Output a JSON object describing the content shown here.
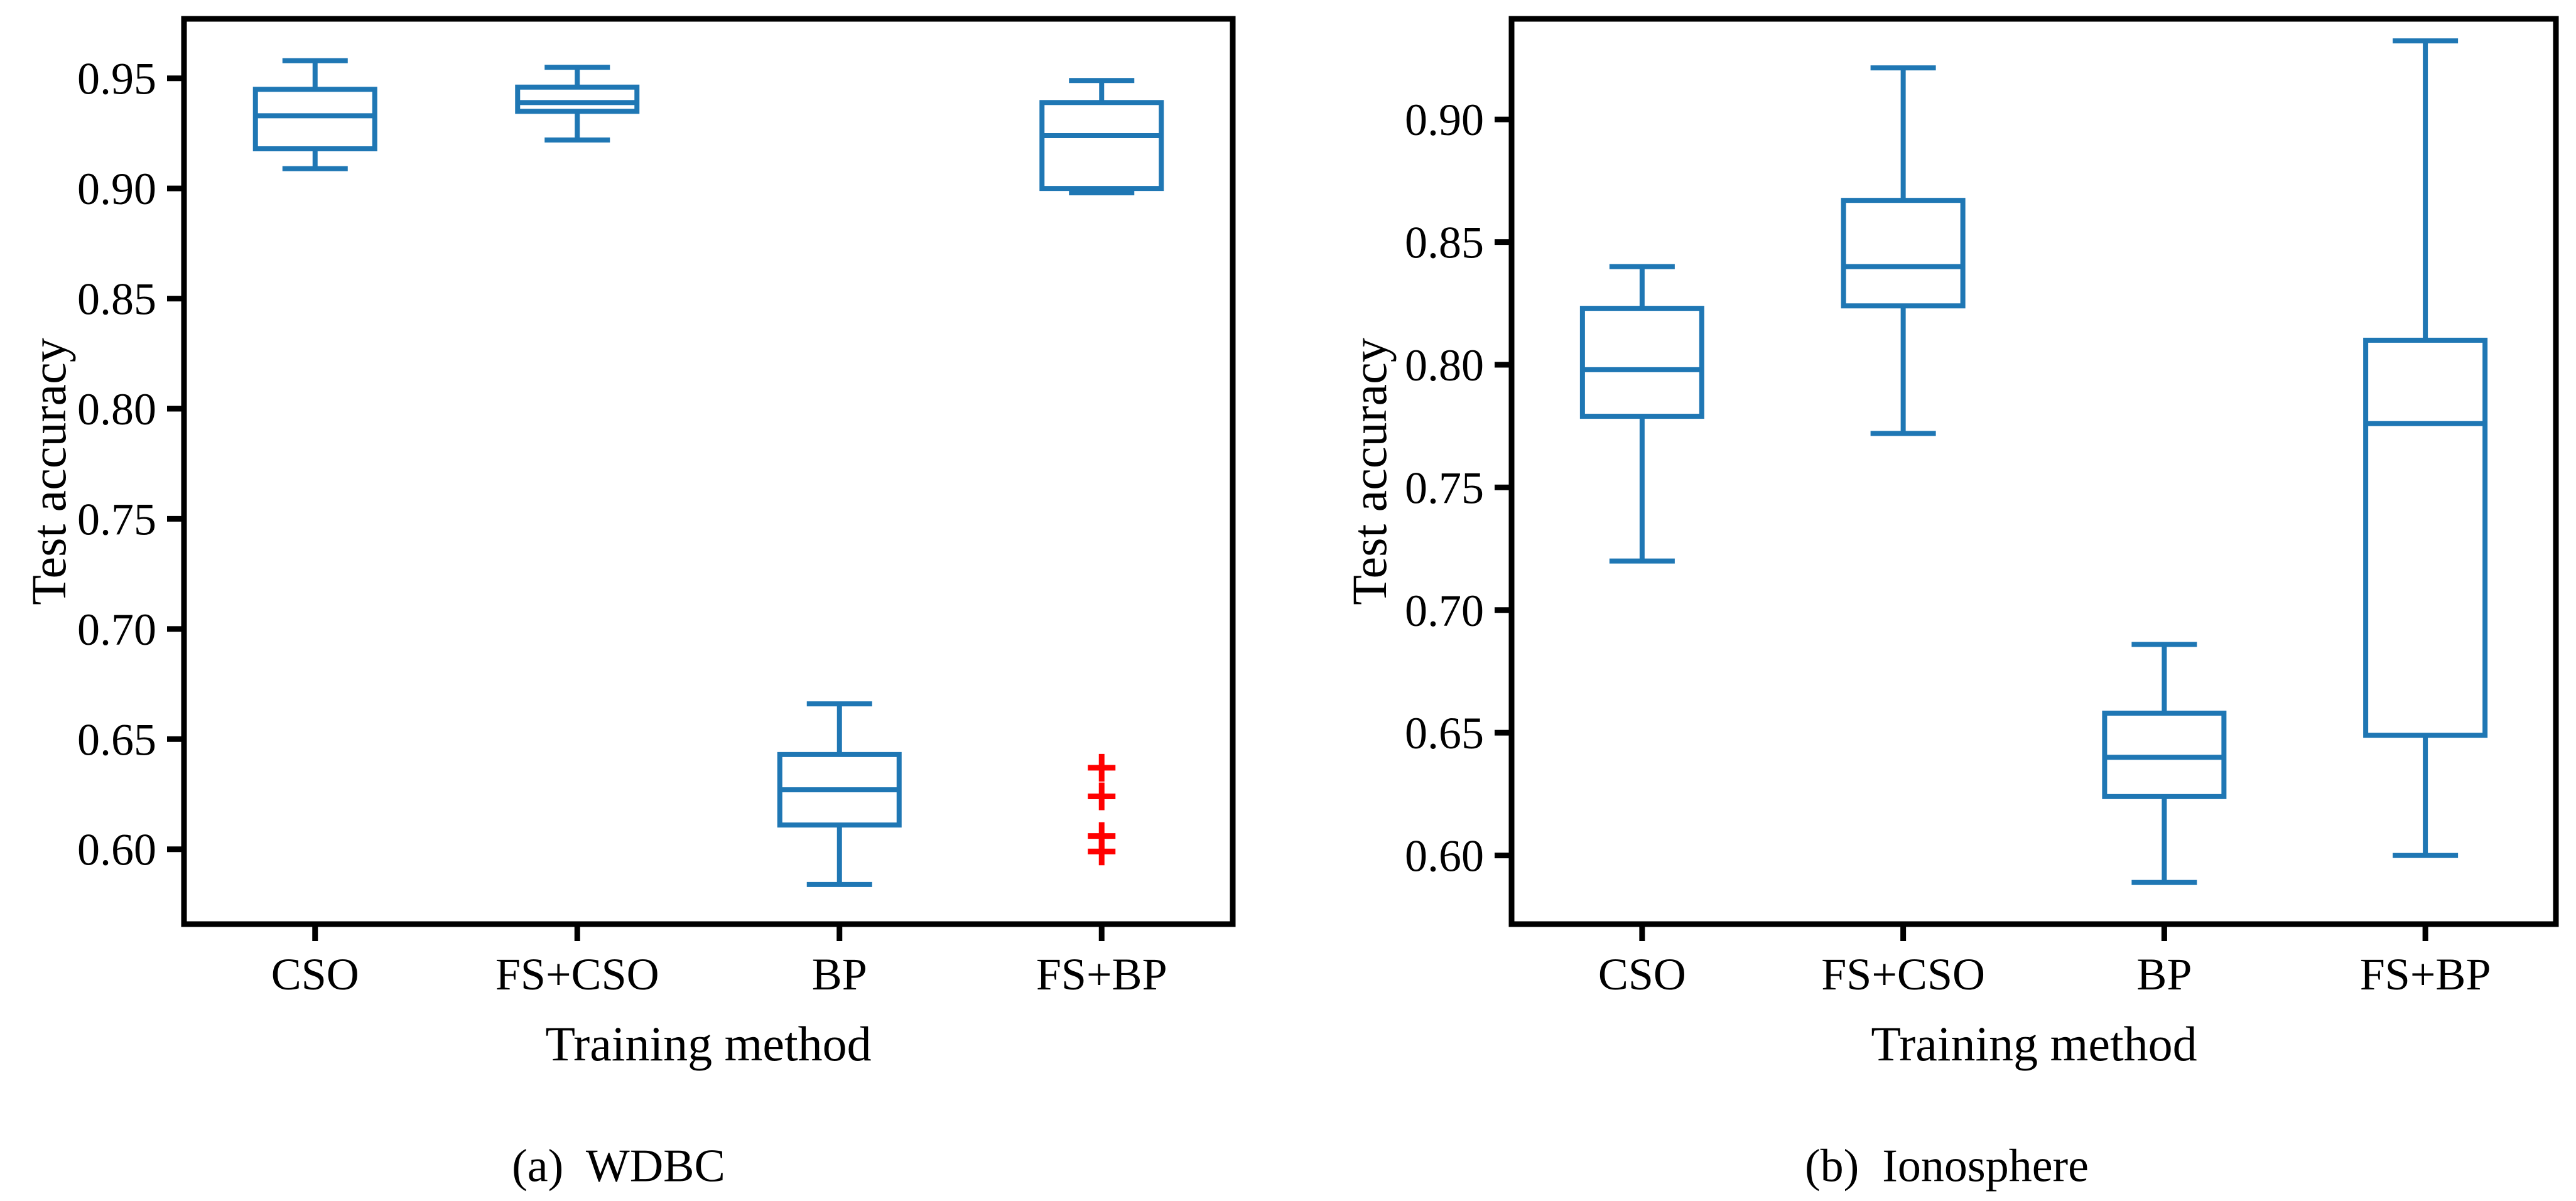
{
  "page": {
    "background": "#ffffff"
  },
  "styles": {
    "box_color": "#1f77b4",
    "flier_color": "#ff0000",
    "axis_color": "#000000",
    "text_color": "#000000"
  },
  "chart_data": [
    {
      "type": "boxplot",
      "caption": "(a)  WDBC",
      "xlabel": "Training method",
      "ylabel": "Test accuracy",
      "categories": [
        "CSO",
        "FS+CSO",
        "BP",
        "FS+BP"
      ],
      "ylim": [
        0.566,
        0.977
      ],
      "yticks": [
        0.6,
        0.65,
        0.7,
        0.75,
        0.8,
        0.85,
        0.9,
        0.95
      ],
      "ytick_labels": [
        "0.60",
        "0.65",
        "0.70",
        "0.75",
        "0.80",
        "0.85",
        "0.90",
        "0.95"
      ],
      "boxes": [
        {
          "category": "CSO",
          "whislo": 0.909,
          "q1": 0.918,
          "med": 0.933,
          "q3": 0.945,
          "whishi": 0.958,
          "fliers": []
        },
        {
          "category": "FS+CSO",
          "whislo": 0.922,
          "q1": 0.935,
          "med": 0.939,
          "q3": 0.946,
          "whishi": 0.955,
          "fliers": []
        },
        {
          "category": "BP",
          "whislo": 0.584,
          "q1": 0.611,
          "med": 0.627,
          "q3": 0.643,
          "whishi": 0.666,
          "fliers": []
        },
        {
          "category": "FS+BP",
          "whislo": 0.898,
          "q1": 0.9,
          "med": 0.924,
          "q3": 0.939,
          "whishi": 0.949,
          "fliers": [
            0.637,
            0.624,
            0.606,
            0.599
          ]
        }
      ]
    },
    {
      "type": "boxplot",
      "caption": "(b)  Ionosphere",
      "xlabel": "Training method",
      "ylabel": "Test accuracy",
      "categories": [
        "CSO",
        "FS+CSO",
        "BP",
        "FS+BP"
      ],
      "ylim": [
        0.572,
        0.941
      ],
      "yticks": [
        0.6,
        0.65,
        0.7,
        0.75,
        0.8,
        0.85,
        0.9
      ],
      "ytick_labels": [
        "0.60",
        "0.65",
        "0.70",
        "0.75",
        "0.80",
        "0.85",
        "0.90"
      ],
      "boxes": [
        {
          "category": "CSO",
          "whislo": 0.72,
          "q1": 0.779,
          "med": 0.798,
          "q3": 0.823,
          "whishi": 0.84,
          "fliers": []
        },
        {
          "category": "FS+CSO",
          "whislo": 0.772,
          "q1": 0.824,
          "med": 0.84,
          "q3": 0.867,
          "whishi": 0.921,
          "fliers": []
        },
        {
          "category": "BP",
          "whislo": 0.589,
          "q1": 0.624,
          "med": 0.64,
          "q3": 0.658,
          "whishi": 0.686,
          "fliers": []
        },
        {
          "category": "FS+BP",
          "whislo": 0.6,
          "q1": 0.649,
          "med": 0.776,
          "q3": 0.81,
          "whishi": 0.932,
          "fliers": []
        }
      ]
    }
  ]
}
